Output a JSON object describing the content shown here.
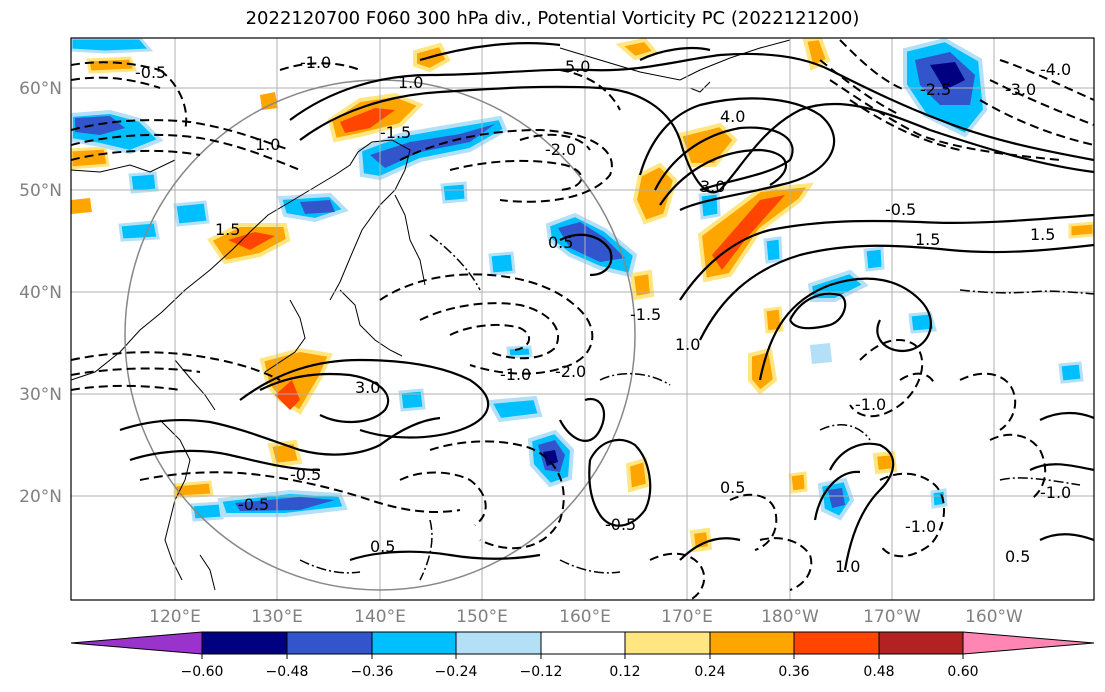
{
  "title": "2022120700 F060 300 hPa div., Potential Vorticity PC (2022121200)",
  "lat_labels": [
    "60°N",
    "50°N",
    "40°N",
    "30°N",
    "20°N"
  ],
  "lon_labels": [
    "120°E",
    "130°E",
    "140°E",
    "150°E",
    "160°E",
    "170°E",
    "180°W",
    "170°W",
    "160°W"
  ],
  "colorbar": {
    "colors": [
      "#9933cc",
      "#000080",
      "#3355cc",
      "#00bfff",
      "#b3e0f7",
      "#ffffff",
      "#ffe680",
      "#ffa500",
      "#ff4500",
      "#b22222",
      "#ff85b3"
    ],
    "ticks": [
      "−0.60",
      "−0.48",
      "−0.36",
      "−0.24",
      "−0.12",
      "0.12",
      "0.24",
      "0.36",
      "0.48",
      "0.60"
    ]
  },
  "contour_labels": [
    "-1.0",
    "-0.5",
    "1.0",
    "-1.5",
    "-2.0",
    "5.0",
    "4.0",
    "3.0",
    "-2.5",
    "0.5",
    "1.5",
    "-1.0",
    "-0.5",
    "-1.5",
    "-2.0",
    "3.0",
    "-1.0",
    "1.0",
    "0.5",
    "-0.5",
    "1.5",
    "1.0",
    "-1.0",
    "0.5",
    "-0.5",
    "-1.0",
    "1.0",
    "0.5",
    "-4.0",
    "-3.0",
    "-0.5",
    "1.5"
  ]
}
